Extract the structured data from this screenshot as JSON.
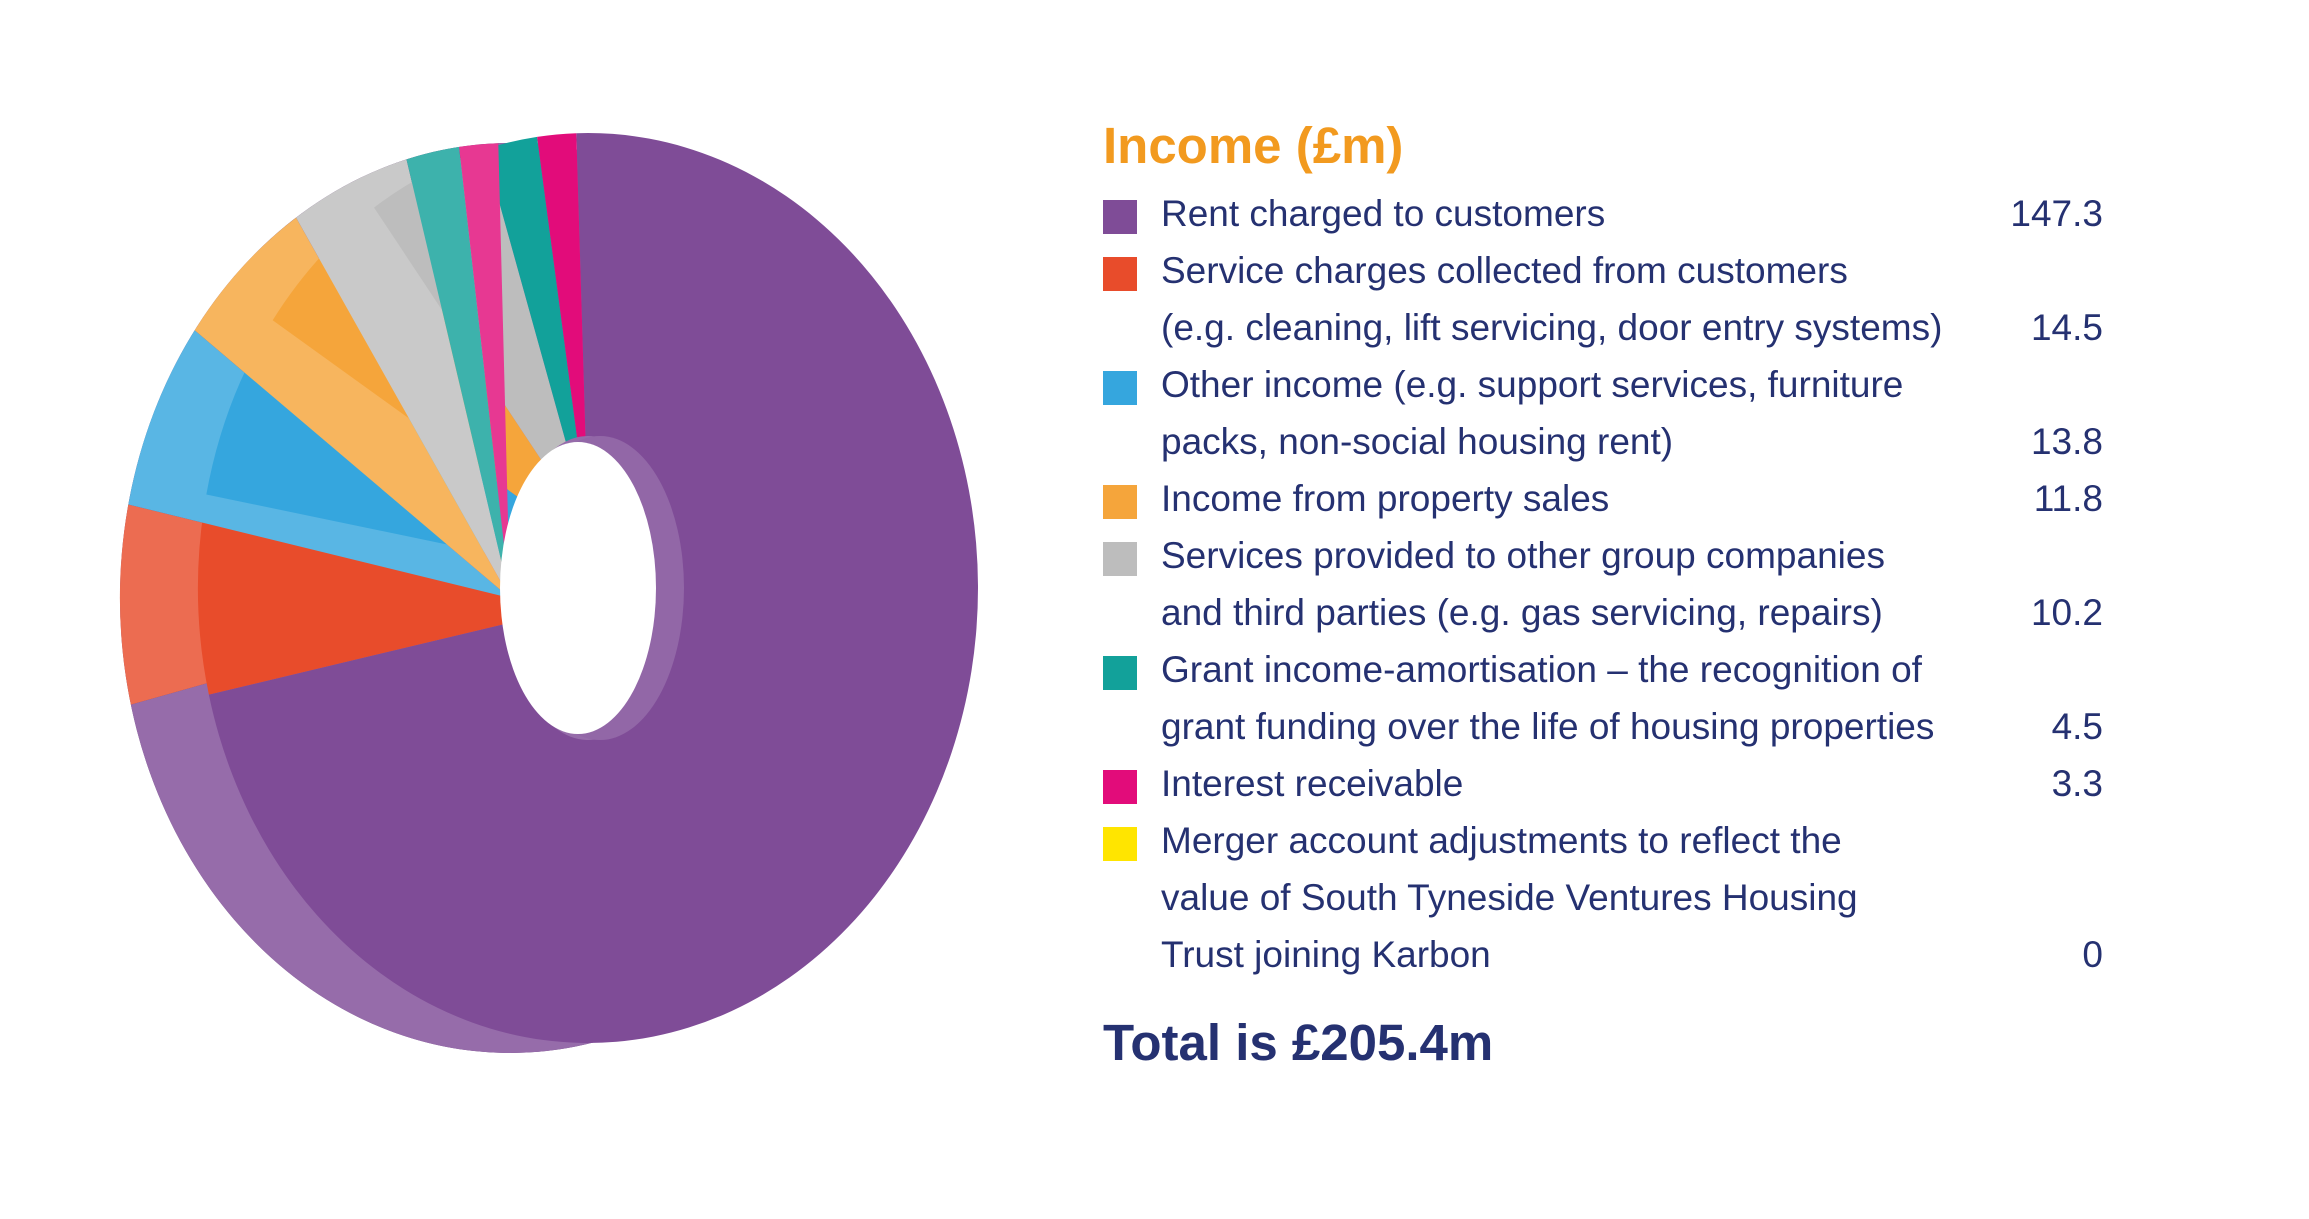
{
  "chart_data": {
    "type": "pie",
    "title": "Income (£m)",
    "total_text": "Total is £205.4m",
    "slices": [
      {
        "label_lines": [
          "Rent charged to customers"
        ],
        "value": 147.3,
        "value_text": "147.3",
        "color": "#7F4C97"
      },
      {
        "label_lines": [
          "Service charges collected from customers",
          "(e.g. cleaning, lift servicing, door entry systems)"
        ],
        "value": 14.5,
        "value_text": "14.5",
        "color": "#E84C2B"
      },
      {
        "label_lines": [
          "Other income (e.g. support services, furniture",
          "packs, non-social housing rent)"
        ],
        "value": 13.8,
        "value_text": "13.8",
        "color": "#35A6DE"
      },
      {
        "label_lines": [
          "Income from property sales"
        ],
        "value": 11.8,
        "value_text": "11.8",
        "color": "#F5A53B"
      },
      {
        "label_lines": [
          "Services provided to other group companies",
          "and third parties (e.g. gas servicing, repairs)"
        ],
        "value": 10.2,
        "value_text": "10.2",
        "color": "#BDBDBD"
      },
      {
        "label_lines": [
          "Grant income-amortisation – the recognition of",
          "grant funding over the life of housing properties"
        ],
        "value": 4.5,
        "value_text": "4.5",
        "color": "#12A19A"
      },
      {
        "label_lines": [
          "Interest receivable"
        ],
        "value": 3.3,
        "value_text": "3.3",
        "color": "#E20C7A"
      },
      {
        "label_lines": [
          "Merger account adjustments to reflect the",
          "value of South Tyneside Ventures Housing",
          "Trust joining Karbon"
        ],
        "value": 0,
        "value_text": "0",
        "color": "#FFE500"
      }
    ],
    "legend_position": "right"
  }
}
